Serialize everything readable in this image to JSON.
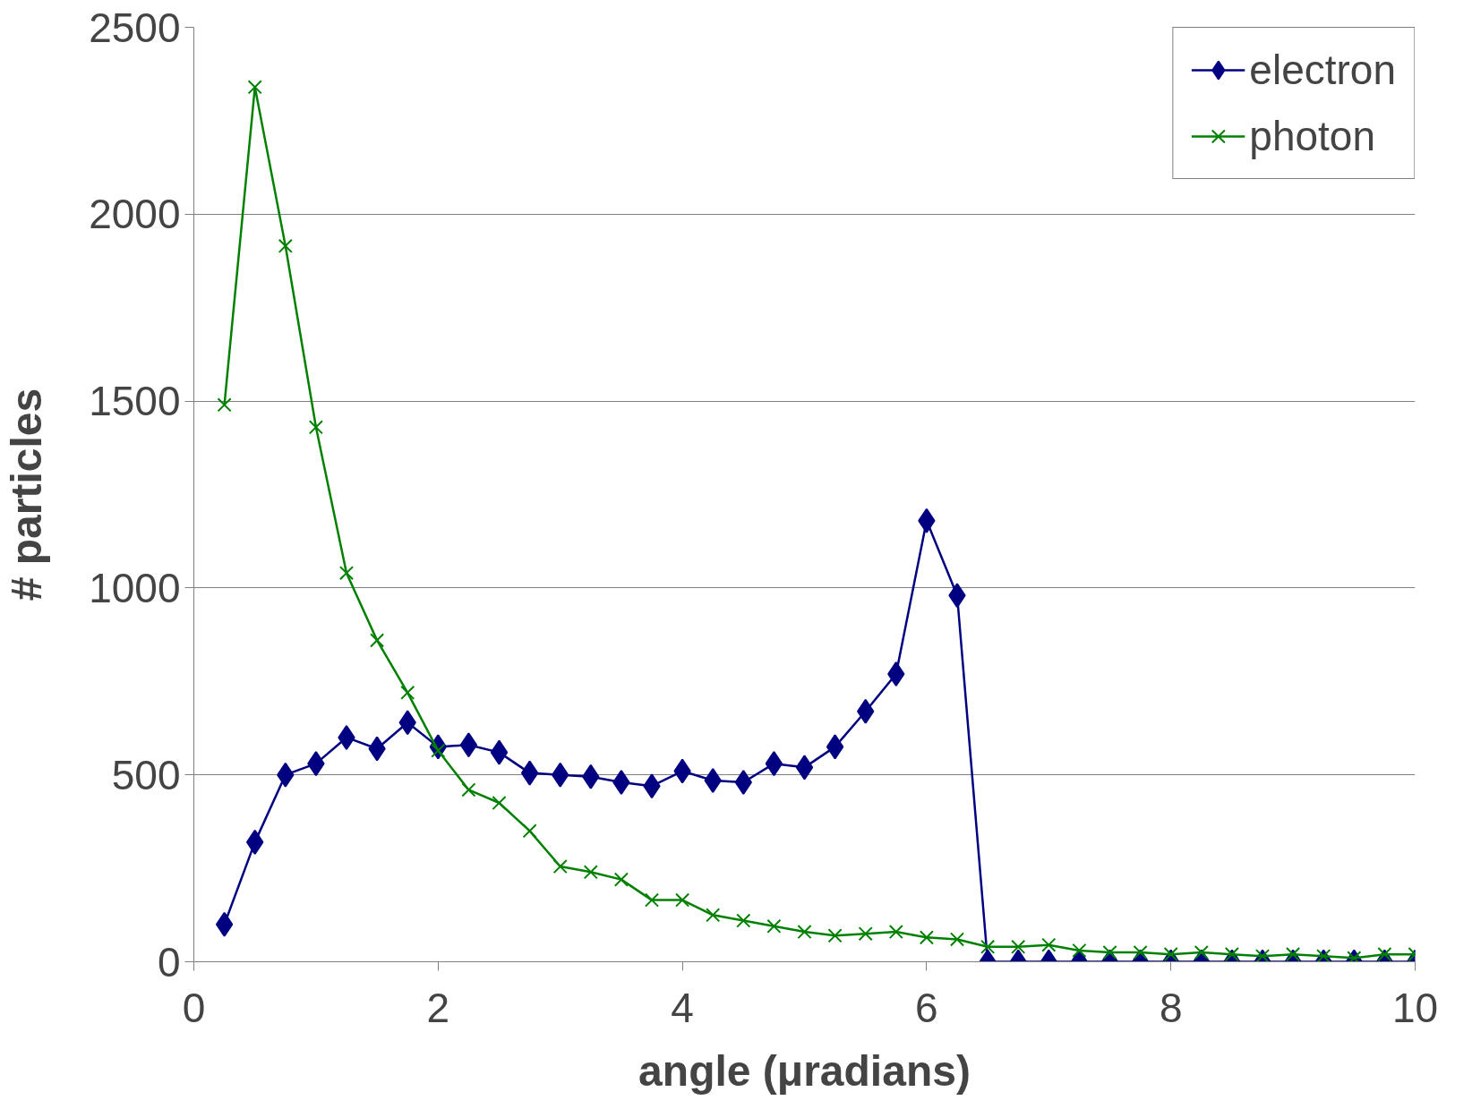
{
  "chart_data": {
    "type": "line",
    "xlabel": "angle (μradians)",
    "ylabel": "# particles",
    "x": [
      0.25,
      0.5,
      0.75,
      1.0,
      1.25,
      1.5,
      1.75,
      2.0,
      2.25,
      2.5,
      2.75,
      3.0,
      3.25,
      3.5,
      3.75,
      4.0,
      4.25,
      4.5,
      4.75,
      5.0,
      5.25,
      5.5,
      5.75,
      6.0,
      6.25,
      6.5,
      6.75,
      7.0,
      7.25,
      7.5,
      7.75,
      8.0,
      8.25,
      8.5,
      8.75,
      9.0,
      9.25,
      9.5,
      9.75,
      10.0
    ],
    "series": [
      {
        "name": "electron",
        "color": "#000080",
        "marker": "diamond",
        "values": [
          100,
          320,
          500,
          530,
          600,
          570,
          640,
          575,
          580,
          560,
          505,
          500,
          495,
          480,
          470,
          510,
          485,
          480,
          530,
          520,
          575,
          670,
          770,
          1180,
          980,
          0,
          0,
          0,
          0,
          0,
          0,
          0,
          0,
          0,
          0,
          0,
          0,
          0,
          0,
          0
        ]
      },
      {
        "name": "photon",
        "color": "#008000",
        "marker": "cross",
        "values": [
          1490,
          2340,
          1915,
          1430,
          1040,
          860,
          720,
          565,
          460,
          425,
          350,
          255,
          240,
          220,
          165,
          165,
          125,
          110,
          95,
          80,
          70,
          75,
          80,
          65,
          60,
          40,
          40,
          45,
          30,
          25,
          25,
          20,
          25,
          20,
          15,
          20,
          15,
          10,
          20,
          20
        ]
      }
    ],
    "xlim": [
      0,
      10
    ],
    "xticks": [
      0,
      2,
      4,
      6,
      8,
      10
    ],
    "ylim": [
      0,
      2500
    ],
    "yticks": [
      0,
      500,
      1000,
      1500,
      2000,
      2500
    ],
    "grid": "y",
    "legend": "top right",
    "line_style": "solid"
  }
}
